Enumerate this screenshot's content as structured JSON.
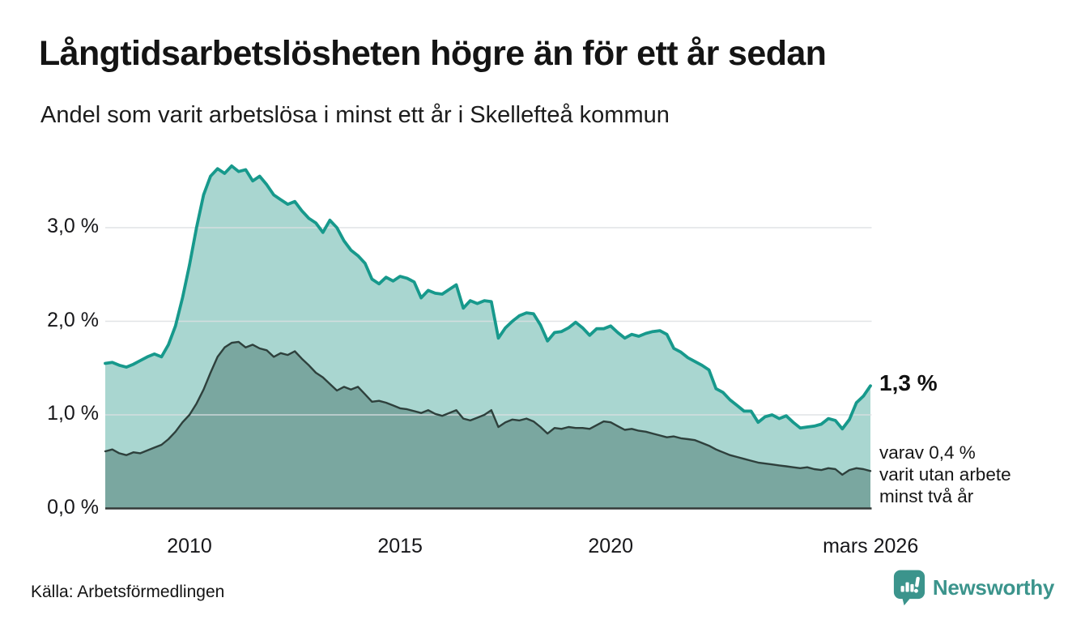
{
  "header": {
    "title": "Långtidsarbetslösheten högre än för ett år sedan",
    "subtitle": "Andel som varit arbetslösa i minst ett år i Skellefteå kommun"
  },
  "chart_data": {
    "type": "area",
    "title": "Långtidsarbetslösheten högre än för ett år sedan",
    "subtitle": "Andel som varit arbetslösa i minst ett år i Skellefteå kommun",
    "unit": "%",
    "x_start_year": 2008.0,
    "x_step_months": 2,
    "x_end_label": "mars 2026",
    "ylim": [
      0,
      3.8
    ],
    "grid": "horizontal",
    "yticks": [
      {
        "value": 0,
        "label": "0,0 %"
      },
      {
        "value": 1,
        "label": "1,0 %"
      },
      {
        "value": 2,
        "label": "2,0 %"
      },
      {
        "value": 3,
        "label": "3,0 %"
      }
    ],
    "xticks": [
      {
        "value": 2010,
        "label": "2010"
      },
      {
        "value": 2015,
        "label": "2015"
      },
      {
        "value": 2020,
        "label": "2020"
      },
      {
        "value": 2026.17,
        "label": "mars 2026"
      }
    ],
    "series": [
      {
        "name": "Arbetslösa minst ett år",
        "line_color": "#17998c",
        "fill_color": "#a9d6d0",
        "end_value": 1.3,
        "values": [
          1.55,
          1.56,
          1.53,
          1.51,
          1.54,
          1.58,
          1.62,
          1.65,
          1.62,
          1.75,
          1.95,
          2.25,
          2.6,
          3.0,
          3.35,
          3.55,
          3.63,
          3.58,
          3.66,
          3.6,
          3.62,
          3.5,
          3.55,
          3.46,
          3.35,
          3.3,
          3.25,
          3.28,
          3.18,
          3.1,
          3.05,
          2.95,
          3.08,
          3.0,
          2.86,
          2.76,
          2.7,
          2.62,
          2.45,
          2.4,
          2.47,
          2.43,
          2.48,
          2.46,
          2.42,
          2.25,
          2.33,
          2.3,
          2.29,
          2.34,
          2.39,
          2.14,
          2.22,
          2.19,
          2.22,
          2.21,
          1.82,
          1.93,
          2.0,
          2.06,
          2.09,
          2.08,
          1.96,
          1.79,
          1.88,
          1.89,
          1.93,
          1.99,
          1.93,
          1.85,
          1.92,
          1.92,
          1.95,
          1.88,
          1.82,
          1.86,
          1.84,
          1.87,
          1.89,
          1.9,
          1.86,
          1.71,
          1.67,
          1.61,
          1.57,
          1.53,
          1.48,
          1.28,
          1.24,
          1.16,
          1.1,
          1.04,
          1.04,
          0.92,
          0.98,
          1.0,
          0.96,
          0.99,
          0.92,
          0.86,
          0.87,
          0.88,
          0.9,
          0.96,
          0.94,
          0.85,
          0.95,
          1.13,
          1.2,
          1.31
        ]
      },
      {
        "name": "Varav utan arbete minst två år",
        "line_color": "#2e403c",
        "fill_color": "#7aa7a0",
        "end_value": 0.4,
        "values": [
          0.61,
          0.63,
          0.59,
          0.57,
          0.6,
          0.59,
          0.62,
          0.65,
          0.68,
          0.74,
          0.82,
          0.92,
          1.0,
          1.12,
          1.27,
          1.45,
          1.62,
          1.72,
          1.77,
          1.78,
          1.72,
          1.75,
          1.71,
          1.69,
          1.62,
          1.66,
          1.64,
          1.68,
          1.6,
          1.53,
          1.45,
          1.4,
          1.33,
          1.26,
          1.3,
          1.27,
          1.3,
          1.22,
          1.14,
          1.15,
          1.13,
          1.1,
          1.07,
          1.06,
          1.04,
          1.02,
          1.05,
          1.01,
          0.99,
          1.02,
          1.05,
          0.96,
          0.94,
          0.97,
          1.0,
          1.05,
          0.87,
          0.92,
          0.95,
          0.94,
          0.96,
          0.93,
          0.87,
          0.8,
          0.86,
          0.85,
          0.87,
          0.86,
          0.86,
          0.85,
          0.89,
          0.93,
          0.92,
          0.88,
          0.84,
          0.85,
          0.83,
          0.82,
          0.8,
          0.78,
          0.76,
          0.77,
          0.75,
          0.74,
          0.73,
          0.7,
          0.67,
          0.63,
          0.6,
          0.57,
          0.55,
          0.53,
          0.51,
          0.49,
          0.48,
          0.47,
          0.46,
          0.45,
          0.44,
          0.43,
          0.44,
          0.42,
          0.41,
          0.43,
          0.42,
          0.36,
          0.41,
          0.43,
          0.42,
          0.4
        ]
      }
    ],
    "annotations": {
      "total_end_label": "1,3 %",
      "dark_end_lines": [
        "varav 0,4 %",
        "varit utan arbete",
        "minst två år"
      ]
    },
    "colors": {
      "gridline": "#dcdfe2",
      "baseline": "#343a38",
      "text": "#161616",
      "brand_teal": "#3b948c"
    }
  },
  "footer": {
    "source": "Källa: Arbetsförmedlingen",
    "brand": "Newsworthy"
  }
}
